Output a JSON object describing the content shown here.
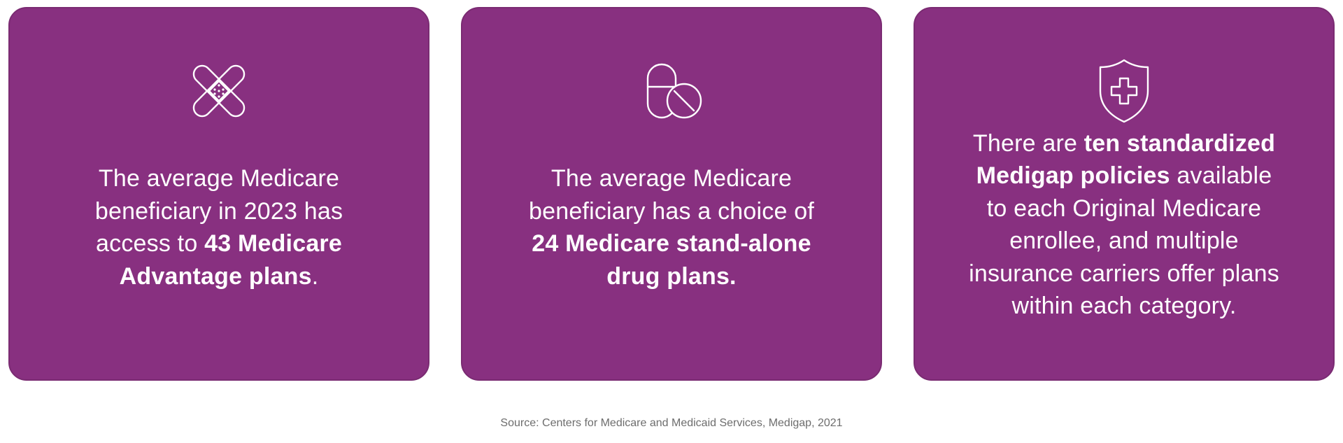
{
  "colors": {
    "card_bg": "#883080",
    "text": "#ffffff",
    "source_text": "#6d6d6d"
  },
  "cards": [
    {
      "icon": "bandage-icon",
      "lines": [
        [
          "The average Medicare"
        ],
        [
          "beneficiary in 2023 has"
        ],
        [
          "access to ",
          "43 Medicare"
        ],
        [
          "Advantage plans",
          "."
        ]
      ]
    },
    {
      "icon": "pills-icon",
      "lines": [
        [
          "The average Medicare"
        ],
        [
          "beneficiary has a choice of"
        ],
        [
          "24 Medicare stand-alone"
        ],
        [
          "drug plans."
        ]
      ]
    },
    {
      "icon": "shield-cross-icon",
      "lines": [
        [
          "There are ",
          "ten standardized"
        ],
        [
          "Medigap policies",
          " available"
        ],
        [
          "to each Original Medicare"
        ],
        [
          "enrollee, and multiple"
        ],
        [
          "insurance carriers offer plans"
        ],
        [
          "within each category."
        ]
      ]
    }
  ],
  "source": "Source: Centers for Medicare and Medicaid Services, Medigap, 2021"
}
